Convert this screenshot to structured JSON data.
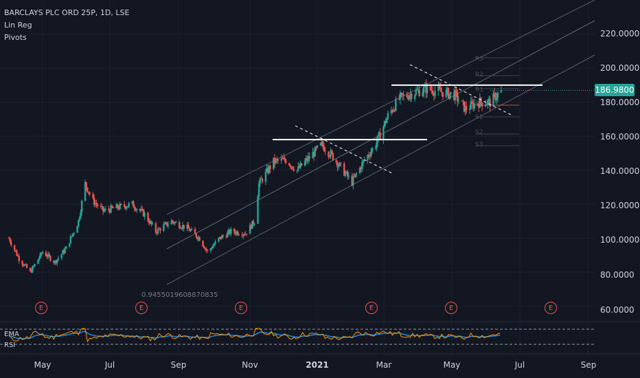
{
  "legend": {
    "symbol": "BARCLAYS PLC ORD 25P, 1D, LSE",
    "indicator1": "Lin Reg",
    "indicator2": "Pivots"
  },
  "regression_value": "0.9455019608870835",
  "last_price": "186.9800",
  "indicators": {
    "ema": "EMA",
    "rsi": "RSI"
  },
  "earnings_marker": "E",
  "pivots": [
    "R3",
    "R2",
    "R1",
    "P",
    "S1",
    "S2",
    "S3"
  ],
  "colors": {
    "background": "#131722",
    "up": "#26a69a",
    "down": "#ef5350",
    "grid": "#1e222d",
    "channel": "#787b86",
    "ema": "#2196f3",
    "rsi": "#ff9800"
  },
  "chart_data": {
    "type": "candlestick",
    "title": "BARCLAYS PLC ORD 25P, 1D, LSE",
    "y_ticks": [
      "220.0000",
      "200.0000",
      "180.0000",
      "160.0000",
      "140.0000",
      "120.0000",
      "100.0000",
      "80.0000",
      "60.0000"
    ],
    "y_values": [
      220,
      200,
      180,
      160,
      140,
      120,
      100,
      80,
      60
    ],
    "x_ticks": [
      "May",
      "Jul",
      "Sep",
      "Nov",
      "2021",
      "Mar",
      "May",
      "Jul",
      "Sep"
    ],
    "x_ticks_bold": [
      false,
      false,
      false,
      false,
      true,
      false,
      false,
      false,
      false
    ],
    "ylim": [
      55,
      232
    ],
    "last_price": 186.98,
    "price_path": [
      {
        "d": "2020-04-01",
        "p": 100
      },
      {
        "d": "2020-04-10",
        "p": 88
      },
      {
        "d": "2020-04-20",
        "p": 80
      },
      {
        "d": "2020-05-01",
        "p": 92
      },
      {
        "d": "2020-05-12",
        "p": 86
      },
      {
        "d": "2020-05-22",
        "p": 94
      },
      {
        "d": "2020-06-02",
        "p": 110
      },
      {
        "d": "2020-06-08",
        "p": 132
      },
      {
        "d": "2020-06-15",
        "p": 122
      },
      {
        "d": "2020-06-24",
        "p": 116
      },
      {
        "d": "2020-07-06",
        "p": 118
      },
      {
        "d": "2020-07-20",
        "p": 120
      },
      {
        "d": "2020-07-31",
        "p": 114
      },
      {
        "d": "2020-08-10",
        "p": 104
      },
      {
        "d": "2020-08-24",
        "p": 110
      },
      {
        "d": "2020-09-07",
        "p": 106
      },
      {
        "d": "2020-09-18",
        "p": 100
      },
      {
        "d": "2020-09-25",
        "p": 92
      },
      {
        "d": "2020-10-06",
        "p": 100
      },
      {
        "d": "2020-10-16",
        "p": 104
      },
      {
        "d": "2020-10-29",
        "p": 103
      },
      {
        "d": "2020-11-06",
        "p": 110
      },
      {
        "d": "2020-11-10",
        "p": 132
      },
      {
        "d": "2020-11-23",
        "p": 145
      },
      {
        "d": "2020-12-04",
        "p": 146
      },
      {
        "d": "2020-12-14",
        "p": 140
      },
      {
        "d": "2021-01-05",
        "p": 155
      },
      {
        "d": "2021-01-15",
        "p": 148
      },
      {
        "d": "2021-01-26",
        "p": 138
      },
      {
        "d": "2021-02-01",
        "p": 133
      },
      {
        "d": "2021-02-12",
        "p": 146
      },
      {
        "d": "2021-02-22",
        "p": 155
      },
      {
        "d": "2021-03-05",
        "p": 172
      },
      {
        "d": "2021-03-15",
        "p": 182
      },
      {
        "d": "2021-03-25",
        "p": 185
      },
      {
        "d": "2021-04-08",
        "p": 188
      },
      {
        "d": "2021-04-22",
        "p": 186
      },
      {
        "d": "2021-05-04",
        "p": 184
      },
      {
        "d": "2021-05-13",
        "p": 176
      },
      {
        "d": "2021-05-24",
        "p": 180
      },
      {
        "d": "2021-06-04",
        "p": 180
      },
      {
        "d": "2021-06-14",
        "p": 186.98
      }
    ]
  }
}
